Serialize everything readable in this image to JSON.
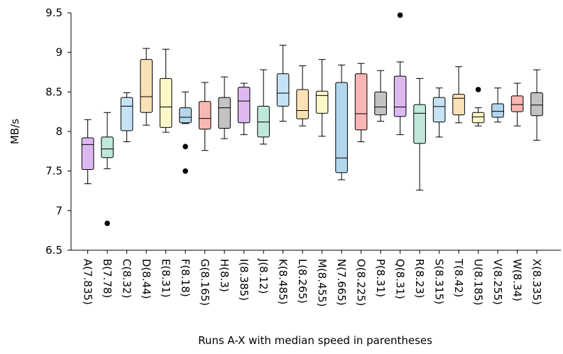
{
  "chart_data": {
    "type": "box",
    "title": "",
    "xlabel": "Runs A-X with median speed in parentheses",
    "ylabel": "MB/s",
    "ylim": [
      6.5,
      9.5
    ],
    "yticks": [
      6.5,
      7,
      7.5,
      8,
      8.5,
      9,
      9.5
    ],
    "ytick_labels": [
      "6.5",
      "7",
      "7.5",
      "8",
      "8.5",
      "9",
      "9.5"
    ],
    "grid": false,
    "categories": [
      "A(7.835)",
      "B(7.78)",
      "C(8.32)",
      "D(8.44)",
      "E(8.31)",
      "F(8.18)",
      "G(8.165)",
      "H(8.3)",
      "I(8.385)",
      "J(8.12)",
      "K(8.485)",
      "L(8.265)",
      "M(8.455)",
      "N(7.665)",
      "O(8.225)",
      "P(8.31)",
      "Q(8.31)",
      "R(8.23)",
      "S(8.315)",
      "T(8.42)",
      "U(8.185)",
      "V(8.255)",
      "W(8.34)",
      "X(8.335)"
    ],
    "boxes": [
      {
        "whislo": 7.34,
        "q1": 7.52,
        "med": 7.835,
        "q3": 7.92,
        "whishi": 8.15,
        "fliers": [],
        "color": "#ddb8f0"
      },
      {
        "whislo": 7.53,
        "q1": 7.67,
        "med": 7.78,
        "q3": 7.93,
        "whishi": 8.24,
        "fliers": [
          6.84
        ],
        "color": "#bfe8d8"
      },
      {
        "whislo": 7.87,
        "q1": 8.01,
        "med": 8.32,
        "q3": 8.43,
        "whishi": 8.49,
        "fliers": [],
        "color": "#c6e3f5"
      },
      {
        "whislo": 8.08,
        "q1": 8.24,
        "med": 8.44,
        "q3": 8.91,
        "whishi": 9.05,
        "fliers": [],
        "color": "#fbe1b6"
      },
      {
        "whislo": 7.99,
        "q1": 8.05,
        "med": 8.31,
        "q3": 8.67,
        "whishi": 9.04,
        "fliers": [],
        "color": "#fdf8c9"
      },
      {
        "whislo": 8.1,
        "q1": 8.11,
        "med": 8.18,
        "q3": 8.3,
        "whishi": 8.5,
        "fliers": [
          7.81,
          7.5
        ],
        "color": "#b2d6ec"
      },
      {
        "whislo": 7.76,
        "q1": 8.03,
        "med": 8.165,
        "q3": 8.38,
        "whishi": 8.62,
        "fliers": [],
        "color": "#f8b7b4"
      },
      {
        "whislo": 7.91,
        "q1": 8.04,
        "med": 8.3,
        "q3": 8.43,
        "whishi": 8.69,
        "fliers": [],
        "color": "#c2c2c2"
      },
      {
        "whislo": 7.96,
        "q1": 8.11,
        "med": 8.385,
        "q3": 8.56,
        "whishi": 8.61,
        "fliers": [],
        "color": "#ddb8f0"
      },
      {
        "whislo": 7.84,
        "q1": 7.93,
        "med": 8.12,
        "q3": 8.32,
        "whishi": 8.78,
        "fliers": [],
        "color": "#bfe8d8"
      },
      {
        "whislo": 8.13,
        "q1": 8.32,
        "med": 8.485,
        "q3": 8.73,
        "whishi": 9.09,
        "fliers": [],
        "color": "#c6e3f5"
      },
      {
        "whislo": 8.07,
        "q1": 8.16,
        "med": 8.265,
        "q3": 8.53,
        "whishi": 8.83,
        "fliers": [],
        "color": "#fbe1b6"
      },
      {
        "whislo": 7.94,
        "q1": 8.23,
        "med": 8.455,
        "q3": 8.51,
        "whishi": 8.91,
        "fliers": [],
        "color": "#fdf8c9"
      },
      {
        "whislo": 7.39,
        "q1": 7.48,
        "med": 7.665,
        "q3": 8.62,
        "whishi": 8.84,
        "fliers": [],
        "color": "#b2d6ec"
      },
      {
        "whislo": 7.87,
        "q1": 8.02,
        "med": 8.225,
        "q3": 8.73,
        "whishi": 8.86,
        "fliers": [],
        "color": "#f8b7b4"
      },
      {
        "whislo": 8.13,
        "q1": 8.21,
        "med": 8.31,
        "q3": 8.5,
        "whishi": 8.77,
        "fliers": [],
        "color": "#c2c2c2"
      },
      {
        "whislo": 7.96,
        "q1": 8.19,
        "med": 8.31,
        "q3": 8.7,
        "whishi": 8.88,
        "fliers": [
          9.47
        ],
        "color": "#ddb8f0"
      },
      {
        "whislo": 7.26,
        "q1": 7.85,
        "med": 8.23,
        "q3": 8.34,
        "whishi": 8.67,
        "fliers": [],
        "color": "#bfe8d8"
      },
      {
        "whislo": 7.93,
        "q1": 8.12,
        "med": 8.315,
        "q3": 8.43,
        "whishi": 8.55,
        "fliers": [],
        "color": "#c6e3f5"
      },
      {
        "whislo": 8.11,
        "q1": 8.21,
        "med": 8.42,
        "q3": 8.47,
        "whishi": 8.82,
        "fliers": [],
        "color": "#fbe1b6"
      },
      {
        "whislo": 8.07,
        "q1": 8.11,
        "med": 8.185,
        "q3": 8.24,
        "whishi": 8.3,
        "fliers": [
          8.53
        ],
        "color": "#fdf8c9"
      },
      {
        "whislo": 8.12,
        "q1": 8.18,
        "med": 8.255,
        "q3": 8.35,
        "whishi": 8.55,
        "fliers": [],
        "color": "#b2d6ec"
      },
      {
        "whislo": 8.07,
        "q1": 8.25,
        "med": 8.34,
        "q3": 8.45,
        "whishi": 8.61,
        "fliers": [],
        "color": "#f8b7b4"
      },
      {
        "whislo": 7.89,
        "q1": 8.2,
        "med": 8.335,
        "q3": 8.49,
        "whishi": 8.78,
        "fliers": [],
        "color": "#c2c2c2"
      }
    ]
  }
}
